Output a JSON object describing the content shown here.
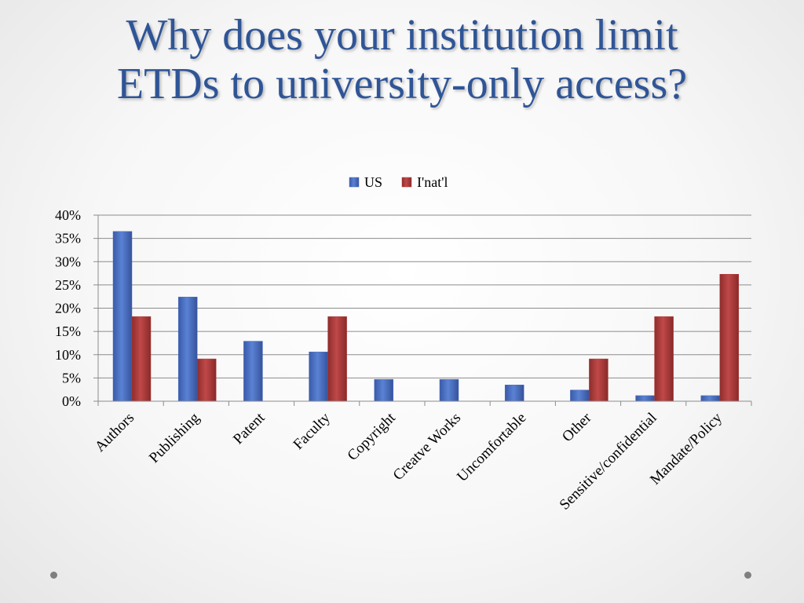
{
  "slide": {
    "title_line1": "Why does your institution limit",
    "title_line2": "ETDs to university-only access?"
  },
  "chart_data": {
    "type": "bar",
    "title": "",
    "xlabel": "",
    "ylabel": "",
    "categories": [
      "Authors",
      "Publishing",
      "Patent",
      "Faculty",
      "Copyright",
      "Creatve Works",
      "Uncomfortable",
      "Other",
      "Sensitive/confidential",
      "Mandate/Policy"
    ],
    "series": [
      {
        "name": "US",
        "color": "#4a6fc0",
        "values": [
          36.5,
          22.4,
          12.9,
          10.6,
          4.7,
          4.7,
          3.5,
          2.4,
          1.2,
          1.2
        ]
      },
      {
        "name": "I'nat'l",
        "color": "#b03c3c",
        "values": [
          18.2,
          9.1,
          0,
          18.2,
          0,
          0,
          0,
          9.1,
          18.2,
          27.3
        ]
      }
    ],
    "ylim": [
      0,
      40
    ],
    "yticks": [
      0,
      5,
      10,
      15,
      20,
      25,
      30,
      35,
      40
    ],
    "ytick_labels": [
      "0%",
      "5%",
      "10%",
      "15%",
      "20%",
      "25%",
      "30%",
      "35%",
      "40%"
    ],
    "grid": true,
    "legend_position": "top"
  },
  "colors": {
    "title": "#2f5597",
    "gridline": "#8c8c8c",
    "text": "#000000"
  }
}
